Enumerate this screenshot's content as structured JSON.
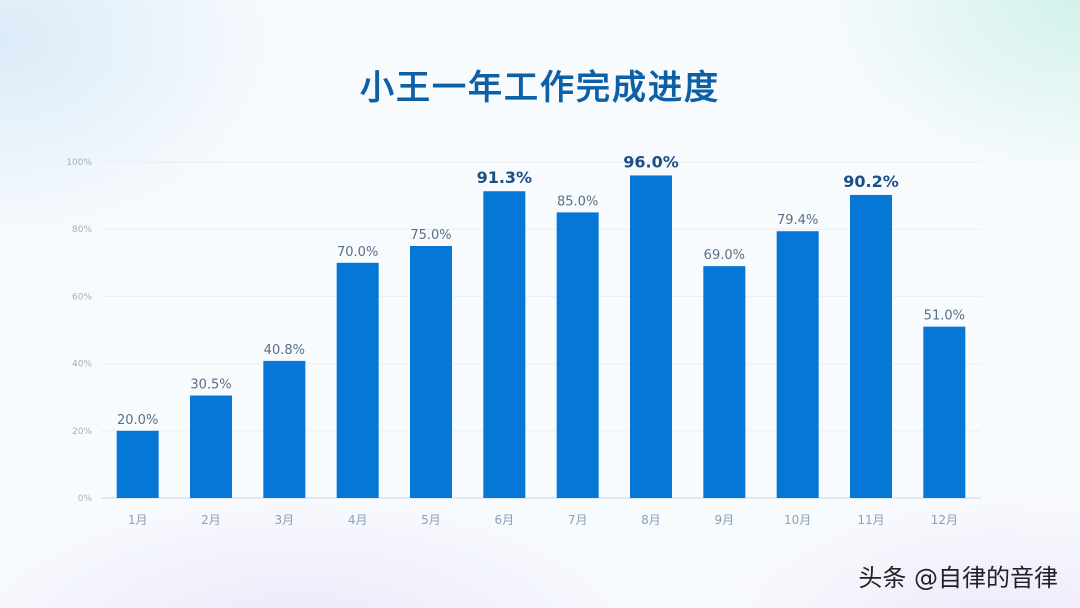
{
  "chart_data": {
    "type": "bar",
    "title": "小王一年工作完成进度",
    "categories": [
      "1月",
      "2月",
      "3月",
      "4月",
      "5月",
      "6月",
      "7月",
      "8月",
      "9月",
      "10月",
      "11月",
      "12月"
    ],
    "values": [
      20.0,
      30.5,
      40.8,
      70.0,
      75.0,
      91.3,
      85.0,
      96.0,
      69.0,
      79.4,
      90.2,
      51.0
    ],
    "value_labels": [
      "20.0%",
      "30.5%",
      "40.8%",
      "70.0%",
      "75.0%",
      "91.3%",
      "85.0%",
      "96.0%",
      "69.0%",
      "79.4%",
      "90.2%",
      "51.0%"
    ],
    "highlighted_labels": [
      5,
      7,
      10
    ],
    "yticks": [
      "0%",
      "20%",
      "40%",
      "60%",
      "80%",
      "100%"
    ],
    "ylim": [
      0,
      100
    ],
    "grid": true,
    "legend": "none",
    "bar_color": "#0577d6"
  },
  "watermark": "头条 @自律的音律"
}
